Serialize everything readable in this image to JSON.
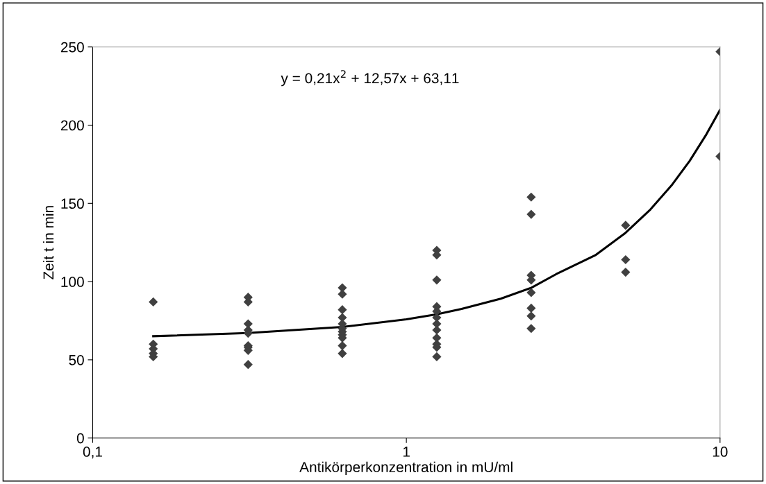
{
  "chart_data": {
    "type": "scatter",
    "xlabel": "Antikörperkonzentration in mU/ml",
    "ylabel": "Zeit t in min",
    "annotations": [
      "y = 0,21x$^{2}$ + 12,57x + 63,11"
    ],
    "log": "x",
    "marker": "diamond",
    "grid": false,
    "legend": false,
    "xlim": [
      0.1,
      10
    ],
    "xticks": [
      {
        "value": 0.1,
        "label": "0,1"
      },
      1,
      10
    ],
    "ylim": [
      0,
      250
    ],
    "yticks": [
      0,
      50,
      100,
      150,
      200,
      250
    ],
    "series": [
      {
        "color": "#404040",
        "x": [
          0.156,
          0.156,
          0.156,
          0.156,
          0.156,
          0.313,
          0.313,
          0.313,
          0.313,
          0.313,
          0.313,
          0.313,
          0.313,
          0.313,
          0.625,
          0.625,
          0.625,
          0.625,
          0.625,
          0.625,
          0.625,
          0.625,
          0.625,
          0.625,
          0.625,
          1.25,
          1.25,
          1.25,
          1.25,
          1.25,
          1.25,
          1.25,
          1.25,
          1.25,
          1.25,
          1.25,
          1.25,
          2.5,
          2.5,
          2.5,
          2.5,
          2.5,
          2.5,
          2.5,
          2.5,
          5,
          5,
          5,
          10,
          10
        ],
        "values": [
          87,
          60,
          57,
          54,
          52,
          90,
          87,
          73,
          69,
          67,
          59,
          58,
          56,
          47,
          96,
          92,
          82,
          77,
          73,
          70,
          68,
          66,
          64,
          59,
          54,
          120,
          117,
          101,
          84,
          81,
          77,
          73,
          69,
          64,
          60,
          58,
          52,
          154,
          143,
          104,
          101,
          93,
          83,
          78,
          70,
          136,
          114,
          106,
          247,
          180
        ]
      },
      {
        "type": "line",
        "color": "#000000",
        "marker": "none",
        "x": [
          0.156,
          0.3125,
          0.625,
          1,
          1.25,
          1.5,
          2,
          2.5,
          3,
          4,
          5,
          6,
          7,
          8,
          9,
          10
        ],
        "values": [
          65.1,
          67.1,
          71.0,
          75.9,
          79.1,
          82.5,
          89.1,
          96.0,
          104.7,
          116.8,
          131.2,
          146.1,
          161.4,
          177.1,
          193.4,
          209.8
        ]
      }
    ]
  }
}
